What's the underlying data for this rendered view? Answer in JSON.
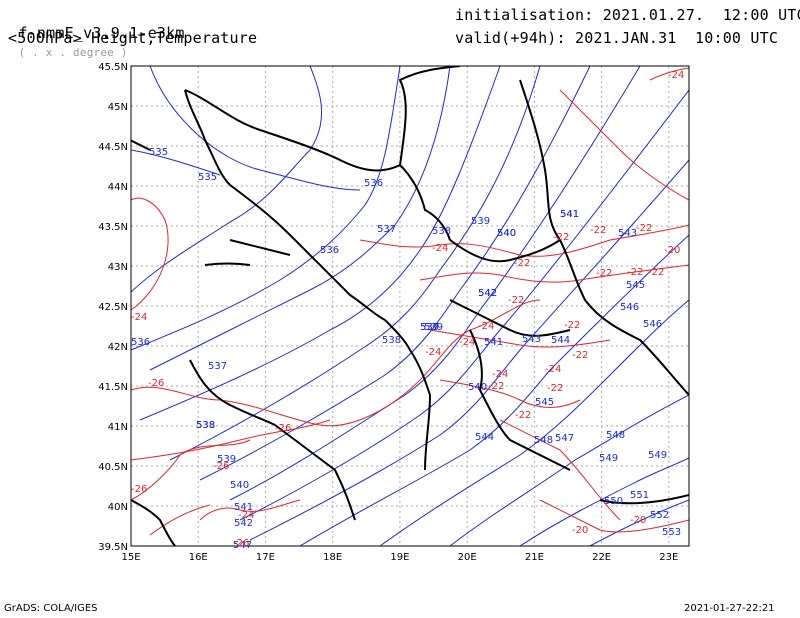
{
  "header": {
    "model_prefix": "f-nmmE_v3.9.1-e3km",
    "projection": "( . x . degree )",
    "init_label": "initialisation: 2021.01.27.  12:00 UTC",
    "level_title": "<500hPa> Height,Temperature",
    "valid_label": "valid(+94h): 2021.JAN.31  10:00 UTC"
  },
  "footer": {
    "credit": "GrADS: COLA/IGES",
    "timestamp": "2021-01-27-22:21"
  },
  "map": {
    "lon_range": [
      15,
      23.3
    ],
    "lat_range": [
      39.5,
      45.5
    ],
    "lon_ticks": [
      "15E",
      "16E",
      "17E",
      "18E",
      "19E",
      "20E",
      "21E",
      "22E",
      "23E"
    ],
    "lat_ticks": [
      "39.5N",
      "40N",
      "40.5N",
      "41N",
      "41.5N",
      "42N",
      "42.5N",
      "43N",
      "43.5N",
      "44N",
      "44.5N",
      "45N",
      "45.5N"
    ],
    "colors": {
      "height": "#1a2cd6",
      "temperature": "#e0262a",
      "coast": "#000000",
      "grid": "#aaaaaa"
    },
    "height_labels": [
      "535",
      "535",
      "536",
      "536",
      "537",
      "538",
      "539",
      "540",
      "541",
      "543",
      "545",
      "546",
      "537",
      "538",
      "539",
      "540",
      "541",
      "542",
      "543",
      "544",
      "545",
      "546",
      "547",
      "548",
      "549",
      "550",
      "551",
      "552",
      "553",
      "538",
      "539",
      "540",
      "541",
      "542",
      "544",
      "547",
      "548",
      "549",
      "536",
      "537",
      "538",
      "539",
      "540",
      "541",
      "542"
    ],
    "temp_labels": [
      "-24",
      "-22",
      "-22",
      "-22",
      "-22",
      "-22",
      "-22",
      "-22",
      "-20",
      "-24",
      "-24",
      "-22",
      "-22",
      "-24",
      "-26",
      "-26",
      "-26",
      "-24",
      "-22",
      "-22",
      "-22",
      "-22",
      "-20",
      "-20",
      "-24",
      "-26",
      "-24",
      "-24",
      "-26",
      "-24"
    ]
  }
}
